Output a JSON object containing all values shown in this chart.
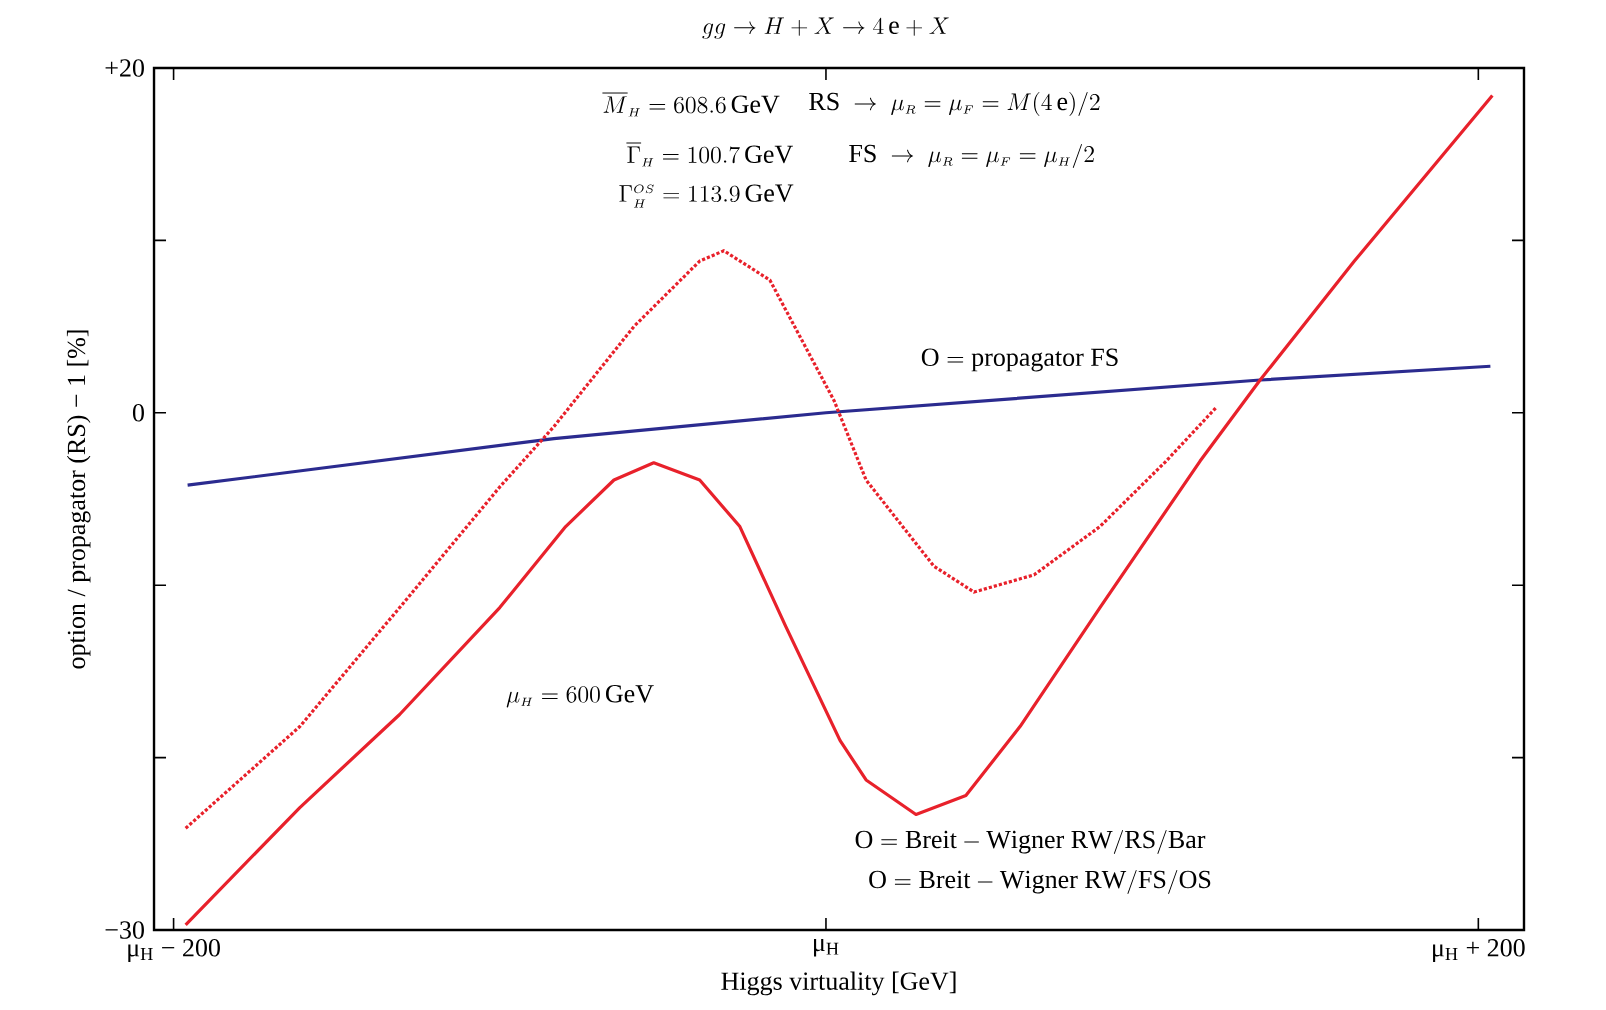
{
  "chart_data": {
    "type": "line",
    "title": "gg \\to H + X \\to 4\\,\\mathrm{e} + X",
    "xlabel": "Higgs virtuality [GeV]",
    "ylabel": "option / propagator (RS) − 1 [%]",
    "xlim": [
      -206,
      214
    ],
    "ylim": [
      -30,
      20
    ],
    "xticks": [
      {
        "value": -200,
        "label": "μ$_{H}$ − 200"
      },
      {
        "value": 0,
        "label": "μ$_{H}$"
      },
      {
        "value": 200,
        "label": "μ$_{H}$ + 200"
      }
    ],
    "yticks": [
      {
        "value": -30,
        "label": "−30"
      },
      {
        "value": -20,
        "label": null
      },
      {
        "value": -10,
        "label": null
      },
      0,
      {
        "value": 10,
        "label": null
      },
      {
        "value": 20,
        "label": "+20"
      }
    ],
    "series": [
      {
        "color": "#2b2b8f",
        "line_style": "solid",
        "x": [
          -195.7,
          -83.4,
          0,
          133.1,
          203.7
        ],
        "values": [
          -4.2,
          -1.5,
          0,
          1.9,
          2.7
        ]
      },
      {
        "color": "#e8212b",
        "line_style": "dotted",
        "x": [
          -196.3,
          -161.3,
          -130.7,
          -100,
          -83.4,
          -58.9,
          -38.7,
          -31.3,
          -17.2,
          2.5,
          12.3,
          33.1,
          45.4,
          63.8,
          84,
          104.3,
          119.6
        ],
        "values": [
          -24.1,
          -18.2,
          -11.3,
          -4.3,
          -0.8,
          5.0,
          8.8,
          9.4,
          7.7,
          0.7,
          -3.9,
          -8.9,
          -10.4,
          -9.4,
          -6.6,
          -2.8,
          0.3
        ]
      },
      {
        "color": "#e8212b",
        "line_style": "solid",
        "x": [
          -196.3,
          -161.3,
          -130.7,
          -100,
          -79.8,
          -65,
          -52.8,
          -38.7,
          -26.4,
          -12.3,
          4.3,
          12.3,
          27.6,
          42.9,
          59.5,
          84,
          114.7,
          133.1,
          162,
          204.3
        ],
        "values": [
          -29.7,
          -22.9,
          -17.5,
          -11.3,
          -6.6,
          -3.9,
          -2.9,
          -3.9,
          -6.6,
          -12.4,
          -19.0,
          -21.3,
          -23.3,
          -22.2,
          -18.2,
          -11.3,
          -2.8,
          1.9,
          8.8,
          18.4
        ]
      }
    ],
    "annotations": [
      "\\overline{M}_{\\scriptscriptstyle H} = 608.6\\,\\mathrm{GeV}",
      "\\overline{\\Gamma}_{\\scriptscriptstyle H} = 100.7\\,\\mathrm{GeV}",
      "\\Gamma_{\\scriptscriptstyle H}^{\\scriptscriptstyle OS} = 113.9\\,\\mathrm{GeV}",
      "\\mathrm{RS}\\ \\to\\ \\mu_{\\scriptscriptstyle R} = \\mu_{\\scriptscriptstyle F} = M(4\\,\\mathrm{e})/2",
      "\\mathrm{FS}\\ \\to\\ \\mu_{\\scriptscriptstyle R} = \\mu_{\\scriptscriptstyle F} = \\mu_{\\scriptscriptstyle H}/2",
      "\\mathrm{O} = \\mathrm{propagator\\ FS}",
      "\\mu_{\\scriptscriptstyle H} = 600\\,\\mathrm{GeV}",
      "\\mathrm{O} = \\mathrm{Breit} - \\mathrm{Wigner\\ RW/RS/Bar}",
      "\\mathrm{O} = \\mathrm{Breit} - \\mathrm{Wigner\\ RW/FS/OS}"
    ]
  }
}
